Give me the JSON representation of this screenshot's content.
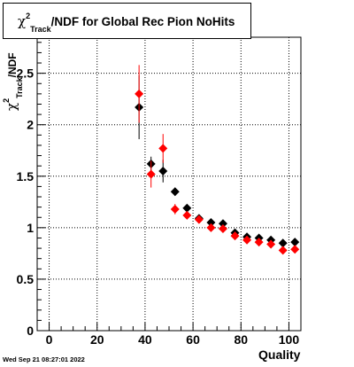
{
  "title": {
    "chi": "χ",
    "sup": "2",
    "sub": "Track",
    "rest": "/NDF for Global Rec Pion NoHits"
  },
  "footer": "Wed Sep 21 08:27:01 2022",
  "chart_data": {
    "type": "scatter",
    "xlabel": "Quality",
    "ylabel": {
      "chi": "χ",
      "sup": "2",
      "sub": "Track",
      "rest": "/NDF"
    },
    "xlim": [
      -5,
      105
    ],
    "ylim": [
      0,
      2.85
    ],
    "xticks": [
      0,
      20,
      40,
      60,
      80,
      100
    ],
    "xtick_labels": [
      "0",
      "20",
      "40",
      "60",
      "80",
      "100"
    ],
    "yticks": [
      0,
      0.5,
      1,
      1.5,
      2,
      2.5
    ],
    "ytick_labels": [
      "0",
      "0.5",
      "1",
      "1.5",
      "2",
      "2.5"
    ],
    "grid": true,
    "series": [
      {
        "color": "#000000",
        "marker": "diamond",
        "x": [
          37.5,
          42.5,
          47.5,
          52.5,
          57.5,
          62.5,
          67.5,
          72.5,
          77.5,
          82.5,
          87.5,
          92.5,
          97.5,
          102.5
        ],
        "y": [
          2.17,
          1.62,
          1.55,
          1.35,
          1.19,
          1.09,
          1.05,
          1.04,
          0.95,
          0.91,
          0.9,
          0.88,
          0.85,
          0.86
        ],
        "yerr": [
          0.31,
          0.07,
          0.11,
          0.04,
          0.03,
          0.02,
          0.02,
          0.02,
          0.02,
          0.02,
          0.02,
          0.02,
          0.02,
          0.02
        ]
      },
      {
        "color": "#ff0000",
        "marker": "diamond",
        "x": [
          37.5,
          42.5,
          47.5,
          52.5,
          57.5,
          62.5,
          67.5,
          72.5,
          77.5,
          82.5,
          87.5,
          92.5,
          97.5,
          102.5
        ],
        "y": [
          2.3,
          1.52,
          1.77,
          1.18,
          1.12,
          1.08,
          1.0,
          0.99,
          0.92,
          0.88,
          0.86,
          0.84,
          0.78,
          0.79
        ],
        "yerr": [
          0.28,
          0.13,
          0.14,
          0.05,
          0.03,
          0.02,
          0.02,
          0.02,
          0.02,
          0.02,
          0.02,
          0.02,
          0.02,
          0.02
        ]
      }
    ]
  }
}
